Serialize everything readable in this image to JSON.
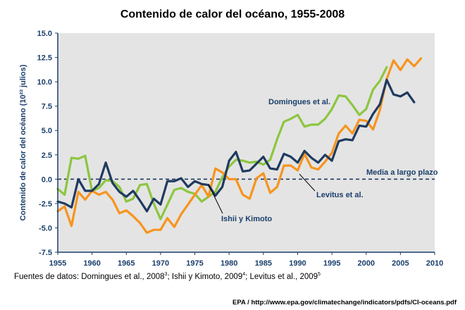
{
  "page": {
    "title": "Contenido de calor del océano, 1955-2008",
    "sources_prefix": "Fuentes de datos: Domingues et al., 2008",
    "sources_sup1": "3",
    "sources_mid1": "; Ishii y Kimoto, 2009",
    "sources_sup2": "4",
    "sources_mid2": "; Levitus et al., 2009",
    "sources_sup3": "5",
    "credit": "EPA / http://www.epa.gov/climatechange/indicators/pdfs/CI-oceans.pdf"
  },
  "colors": {
    "plot_bg": "#e4e4e4",
    "axis_text": "#1a3f6b",
    "domingues": "#8cc63f",
    "ishii": "#1f3a5f",
    "levitus": "#f7941d"
  },
  "chart_data": {
    "type": "line",
    "title": "Contenido de calor del océano, 1955-2008",
    "xlabel": "",
    "ylabel": "Contenido de calor del océano (10²² julios)",
    "xlim": [
      1955,
      2010
    ],
    "ylim": [
      -7.5,
      15.0
    ],
    "xticks": [
      1955,
      1960,
      1965,
      1970,
      1975,
      1980,
      1985,
      1990,
      1995,
      2000,
      2005,
      2010
    ],
    "yticks": [
      -7.5,
      -5.0,
      -2.5,
      0.0,
      2.5,
      5.0,
      7.5,
      10.0,
      12.5,
      15.0
    ],
    "ytick_labels": [
      "-7.5",
      "-5.0",
      "-2.5",
      "0.0",
      "2.5",
      "5.0",
      "7.5",
      "10.0",
      "12.5",
      "15.0"
    ],
    "grid": false,
    "reference_line": {
      "y": 0,
      "label": "Media a largo plazo"
    },
    "annotations": [
      "Domingues et al.",
      "Levitus et al.",
      "Ishii y Kimoto"
    ],
    "series": [
      {
        "name": "Domingues et al.",
        "x": [
          1955,
          1956,
          1957,
          1958,
          1959,
          1960,
          1961,
          1962,
          1963,
          1964,
          1965,
          1966,
          1967,
          1968,
          1969,
          1970,
          1971,
          1972,
          1973,
          1974,
          1975,
          1976,
          1977,
          1978,
          1979,
          1980,
          1981,
          1982,
          1983,
          1984,
          1985,
          1986,
          1987,
          1988,
          1989,
          1990,
          1991,
          1992,
          1993,
          1994,
          1995,
          1996,
          1997,
          1998,
          1999,
          2000,
          2001,
          2002,
          2003
        ],
        "y": [
          -1.0,
          -1.6,
          2.2,
          2.1,
          2.4,
          -1.2,
          -0.9,
          -0.1,
          -0.2,
          -0.8,
          -2.3,
          -2.0,
          -0.6,
          -0.5,
          -2.5,
          -4.1,
          -2.6,
          -1.1,
          -0.9,
          -1.3,
          -1.5,
          -2.3,
          -1.8,
          -1.3,
          0.2,
          1.3,
          2.0,
          1.9,
          1.7,
          1.8,
          1.5,
          2.0,
          4.1,
          5.9,
          6.2,
          6.6,
          5.4,
          5.6,
          5.6,
          6.2,
          7.2,
          8.6,
          8.5,
          7.6,
          6.6,
          7.2,
          9.2,
          10.1,
          11.5
        ]
      },
      {
        "name": "Ishii y Kimoto",
        "x": [
          1955,
          1956,
          1957,
          1958,
          1959,
          1960,
          1961,
          1962,
          1963,
          1964,
          1965,
          1966,
          1967,
          1968,
          1969,
          1970,
          1971,
          1972,
          1973,
          1974,
          1975,
          1976,
          1977,
          1978,
          1979,
          1980,
          1981,
          1982,
          1983,
          1984,
          1985,
          1986,
          1987,
          1988,
          1989,
          1990,
          1991,
          1992,
          1993,
          1994,
          1995,
          1996,
          1997,
          1998,
          1999,
          2000,
          2001,
          2002,
          2003,
          2004,
          2005,
          2006,
          2007
        ],
        "y": [
          -2.3,
          -2.5,
          -2.9,
          0.0,
          -1.2,
          -1.2,
          -0.5,
          1.7,
          -0.4,
          -1.3,
          -1.8,
          -1.2,
          -2.2,
          -3.3,
          -2.0,
          -2.6,
          -0.2,
          -0.2,
          0.1,
          -0.8,
          -0.2,
          -0.5,
          -0.6,
          -1.7,
          -0.8,
          1.9,
          2.8,
          0.8,
          0.9,
          1.6,
          2.3,
          1.1,
          1.0,
          2.6,
          2.3,
          1.7,
          2.9,
          2.2,
          1.7,
          2.5,
          1.9,
          3.9,
          4.1,
          4.0,
          5.5,
          5.4,
          6.7,
          7.7,
          10.2,
          8.7,
          8.5,
          8.9,
          7.9
        ]
      },
      {
        "name": "Levitus et al.",
        "x": [
          1955,
          1956,
          1957,
          1958,
          1959,
          1960,
          1961,
          1962,
          1963,
          1964,
          1965,
          1966,
          1967,
          1968,
          1969,
          1970,
          1971,
          1972,
          1973,
          1974,
          1975,
          1976,
          1977,
          1978,
          1979,
          1980,
          1981,
          1982,
          1983,
          1984,
          1985,
          1986,
          1987,
          1988,
          1989,
          1990,
          1991,
          1992,
          1993,
          1994,
          1995,
          1996,
          1997,
          1998,
          1999,
          2000,
          2001,
          2002,
          2003,
          2004,
          2005,
          2006,
          2007,
          2008
        ],
        "y": [
          -3.3,
          -2.8,
          -4.8,
          -1.3,
          -2.1,
          -1.2,
          -1.6,
          -1.3,
          -2.1,
          -3.5,
          -3.2,
          -3.8,
          -4.5,
          -5.5,
          -5.2,
          -5.2,
          -4.0,
          -4.9,
          -3.6,
          -2.6,
          -1.6,
          -0.6,
          -1.8,
          1.1,
          0.7,
          0.0,
          0.0,
          -1.6,
          -2.0,
          0.1,
          0.6,
          -1.4,
          -0.8,
          1.4,
          1.4,
          0.9,
          2.6,
          1.2,
          1.0,
          1.8,
          2.7,
          4.7,
          5.5,
          4.7,
          6.1,
          6.0,
          5.1,
          7.1,
          10.3,
          12.2,
          11.2,
          12.3,
          11.6,
          12.4
        ]
      }
    ]
  }
}
